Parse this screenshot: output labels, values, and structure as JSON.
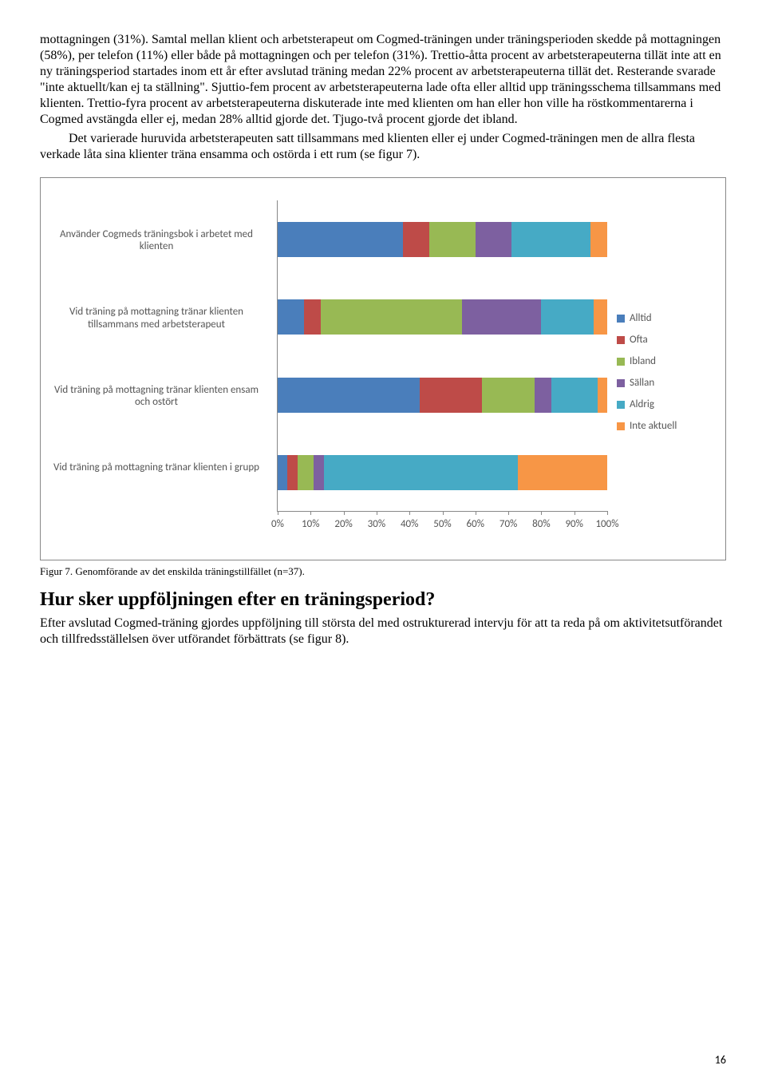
{
  "paragraph1": "mottagningen (31%). Samtal mellan klient och arbetsterapeut om Cogmed-träningen under träningsperioden skedde på mottagningen (58%), per telefon (11%) eller både på mottagningen och per telefon (31%). Trettio-åtta procent av arbetsterapeuterna tillät inte att en ny träningsperiod startades inom ett år efter avslutad träning medan 22% procent av arbetsterapeuterna tillät det. Resterande svarade \"inte aktuellt/kan ej ta ställning\". Sjuttio-fem procent av arbetsterapeuterna lade ofta eller alltid upp träningsschema tillsammans med klienten. Trettio-fyra procent av arbetsterapeuterna diskuterade inte med klienten om han eller hon ville ha röstkommentarerna i Cogmed avstängda eller ej, medan 28% alltid gjorde det. Tjugo-två procent gjorde det ibland.",
  "paragraph2": "Det varierade huruvida arbetsterapeuten satt tillsammans med klienten eller ej under Cogmed-träningen men de allra flesta verkade låta sina klienter träna ensamma och ostörda i ett rum (se figur 7).",
  "caption": "Figur 7. Genomförande av det enskilda träningstillfället (n=37).",
  "heading": "Hur sker uppföljningen efter en träningsperiod?",
  "paragraph3": "Efter avslutad Cogmed-träning gjordes uppföljning till största del med ostrukturerad intervju för att ta reda på om aktivitetsutförandet och tillfredsställelsen över utförandet förbättrats (se figur 8).",
  "page_number": "16",
  "chart": {
    "type": "stacked_bar_horizontal",
    "x_ticks": [
      "0%",
      "10%",
      "20%",
      "30%",
      "40%",
      "50%",
      "60%",
      "70%",
      "80%",
      "90%",
      "100%"
    ],
    "colors": {
      "alltid": "#4a7ebb",
      "ofta": "#be4b48",
      "ibland": "#98b954",
      "sallan": "#7d60a0",
      "aldrig": "#46aac5",
      "inte_aktuell": "#f79646"
    },
    "legend": [
      {
        "key": "alltid",
        "label": "Alltid"
      },
      {
        "key": "ofta",
        "label": "Ofta"
      },
      {
        "key": "ibland",
        "label": "Ibland"
      },
      {
        "key": "sallan",
        "label": "Sällan"
      },
      {
        "key": "aldrig",
        "label": "Aldrig"
      },
      {
        "key": "inte_aktuell",
        "label": "Inte aktuell"
      }
    ],
    "categories": [
      {
        "label": "Använder Cogmeds träningsbok i arbetet med klienten",
        "values": {
          "alltid": 38,
          "ofta": 8,
          "ibland": 14,
          "sallan": 11,
          "aldrig": 24,
          "inte_aktuell": 5
        }
      },
      {
        "label": "Vid träning på mottagning tränar klienten tillsammans med arbetsterapeut",
        "values": {
          "alltid": 8,
          "ofta": 5,
          "ibland": 43,
          "sallan": 24,
          "aldrig": 16,
          "inte_aktuell": 4
        }
      },
      {
        "label": "Vid träning på mottagning tränar klienten ensam och ostört",
        "values": {
          "alltid": 43,
          "ofta": 19,
          "ibland": 16,
          "sallan": 5,
          "aldrig": 14,
          "inte_aktuell": 3
        }
      },
      {
        "label": "Vid träning på mottagning tränar klienten i grupp",
        "values": {
          "alltid": 3,
          "ofta": 3,
          "ibland": 5,
          "sallan": 3,
          "aldrig": 59,
          "inte_aktuell": 27
        }
      }
    ]
  }
}
